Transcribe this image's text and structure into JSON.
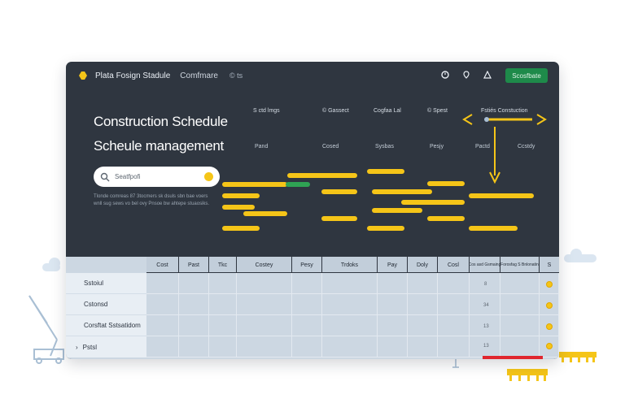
{
  "header": {
    "app_title": "Plata Fosign Stadule",
    "nav_link": "Comfmare",
    "nav_small": "© ts",
    "icons": [
      "clock-icon",
      "pin-icon",
      "alert-icon"
    ],
    "cta_label": "Scosfbate"
  },
  "hero": {
    "title": "Construction Schedule",
    "subtitle": "Scheule management"
  },
  "search": {
    "placeholder": "Seatfpofi"
  },
  "description": "Tlonde comreas 87 3tocmers sk dsuls sbn bae voers wnll sug sews vo bel ovy Pnsoe bw ahtepe stuaosiks.",
  "gantt": {
    "col_headers": [
      "S ctd lmgs",
      "© Gassect",
      "Cogfaa Lal",
      "© Spest",
      "Fstiés Constuction"
    ],
    "row_headers": [
      "Pand",
      "Cosed",
      "Sysbas",
      "Pesjy",
      "Pactd",
      "Ccstdy"
    ]
  },
  "table": {
    "columns": [
      "Cost",
      "Past",
      "Tkc",
      "Costey",
      "Pesy",
      "Trdoks",
      "Pay",
      "Doly",
      "Cosl",
      "Cos asd Gsmaing",
      "Forosfag S Bnlonatin",
      "S"
    ],
    "rows": [
      {
        "label": "Sstoiul",
        "number": "8"
      },
      {
        "label": "Cstonsd",
        "number": "34"
      },
      {
        "label": "Corsftat Sstsatidom",
        "number": "13"
      },
      {
        "label": "Pstsl",
        "number": "13"
      }
    ],
    "row_marker": "›"
  },
  "colors": {
    "window_bg": "#2f3640",
    "accent_yellow": "#f5c518",
    "accent_green": "#1e8a4a",
    "alert_red": "#e0262e",
    "table_bg": "#ccd7e2"
  }
}
